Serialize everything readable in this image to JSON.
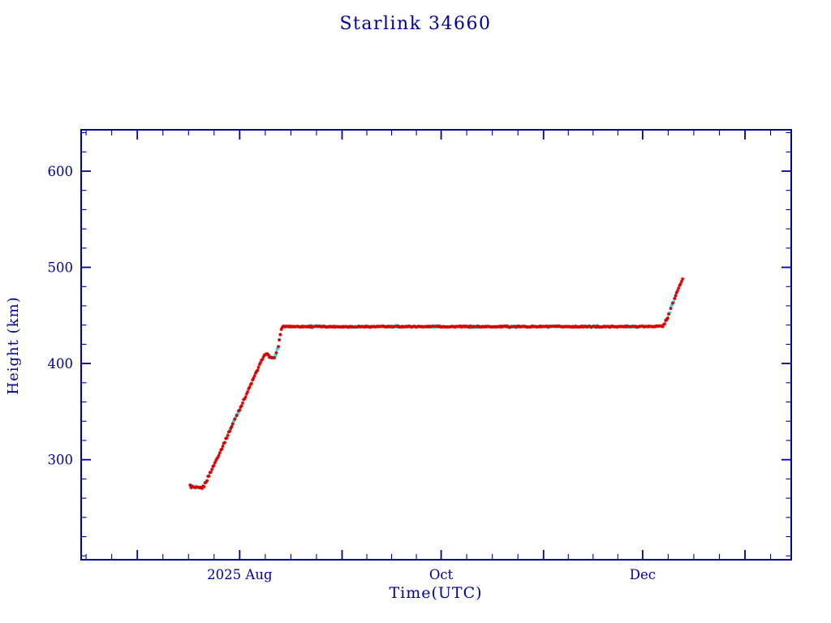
{
  "chart_data": {
    "type": "scatter",
    "title": "Starlink 34660",
    "xlabel": "Time(UTC)",
    "ylabel": "Height (km)",
    "grid": false,
    "legend": null,
    "x_axis": {
      "unit": "days since 2025-06-15 (UTC)",
      "range": [
        0,
        215
      ],
      "major_ticks": [
        {
          "day": 17,
          "label": ""
        },
        {
          "day": 48,
          "label": "2025 Aug"
        },
        {
          "day": 79,
          "label": ""
        },
        {
          "day": 109,
          "label": "Oct"
        },
        {
          "day": 140,
          "label": ""
        },
        {
          "day": 170,
          "label": "Dec"
        },
        {
          "day": 201,
          "label": ""
        }
      ]
    },
    "y_axis": {
      "unit": "km",
      "range": [
        196,
        643
      ],
      "minor_tick_step_km": 20,
      "major_ticks": [
        {
          "km": 300,
          "label": "300"
        },
        {
          "km": 400,
          "label": "400"
        },
        {
          "km": 500,
          "label": "500"
        },
        {
          "km": 600,
          "label": "600"
        }
      ]
    },
    "profile_keypoints_day_km": [
      [
        33.0,
        272.5
      ],
      [
        34.2,
        271.0
      ],
      [
        35.8,
        270.0
      ],
      [
        37.0,
        271.5
      ],
      [
        40.0,
        293.0
      ],
      [
        43.0,
        315.0
      ],
      [
        46.0,
        338.0
      ],
      [
        49.0,
        360.0
      ],
      [
        52.0,
        383.0
      ],
      [
        54.5,
        402.0
      ],
      [
        55.3,
        408.5
      ],
      [
        56.2,
        410.0
      ],
      [
        57.2,
        406.0
      ],
      [
        58.2,
        405.5
      ],
      [
        59.0,
        409.0
      ],
      [
        59.8,
        420.0
      ],
      [
        60.6,
        436.0
      ],
      [
        61.4,
        438.5
      ],
      [
        80.0,
        438.3
      ],
      [
        100.0,
        438.4
      ],
      [
        120.0,
        438.3
      ],
      [
        140.0,
        438.4
      ],
      [
        160.0,
        438.3
      ],
      [
        172.0,
        438.5
      ],
      [
        176.2,
        438.8
      ],
      [
        177.6,
        448.0
      ],
      [
        179.2,
        463.0
      ],
      [
        180.6,
        476.0
      ],
      [
        181.9,
        486.5
      ],
      [
        182.3,
        488.0
      ]
    ],
    "series": [
      {
        "name": "observed-height-markers",
        "color": "#d40000",
        "marker": "asterisk"
      },
      {
        "name": "secondary-height-markers",
        "color": "#2fd8e8",
        "marker": "dot"
      }
    ],
    "plateau_height_km": 438.4,
    "start_height_km": 272,
    "end_height_km": 488
  },
  "style": {
    "axis_color": "#00009b",
    "text_color": "#00009b",
    "background": "#ffffff"
  }
}
